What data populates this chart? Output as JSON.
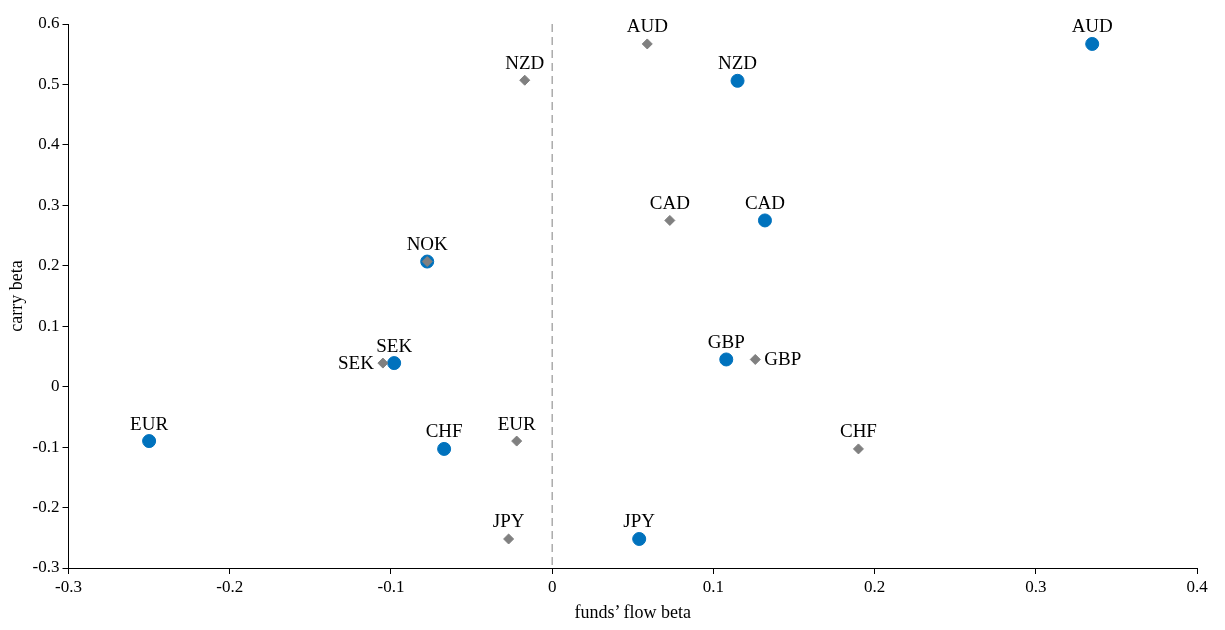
{
  "chart_data": {
    "type": "scatter",
    "xlabel": "funds’ flow beta",
    "ylabel": "carry beta",
    "xlim": [
      -0.3,
      0.4
    ],
    "xticks": [
      -0.3,
      -0.2,
      -0.1,
      0,
      0.1,
      0.2,
      0.3,
      0.4
    ],
    "ylim": [
      -0.3,
      0.6
    ],
    "yticks": [
      -0.3,
      -0.2,
      -0.1,
      0,
      0.1,
      0.2,
      0.3,
      0.4,
      0.5,
      0.6
    ],
    "grid": false,
    "legend": false,
    "series": [
      {
        "color": "#0072bd",
        "marker": "circle",
        "x": [
          0.335,
          0.115,
          0.132,
          -0.0775,
          -0.098,
          0.108,
          -0.25,
          -0.067,
          0.054
        ],
        "values": [
          0.567,
          0.506,
          0.275,
          0.207,
          0.039,
          0.045,
          -0.09,
          -0.103,
          -0.252
        ]
      },
      {
        "color": "#808080",
        "marker": "diamond",
        "x": [
          0.059,
          -0.017,
          0.073,
          -0.0775,
          -0.105,
          0.126,
          -0.022,
          0.19,
          -0.027
        ],
        "values": [
          0.567,
          0.507,
          0.275,
          0.207,
          0.039,
          0.045,
          -0.09,
          -0.103,
          -0.252
        ]
      }
    ],
    "ref_lines": [
      {
        "axis": "x",
        "value": 0,
        "color": "#808080",
        "line_style": "dashed"
      }
    ],
    "annotations": [
      {
        "text": "AUD",
        "x": 0.335,
        "y": 0.567
      },
      {
        "text": "NZD",
        "x": 0.115,
        "y": 0.506
      },
      {
        "text": "CAD",
        "x": 0.132,
        "y": 0.275
      },
      {
        "text": "NOK",
        "x": -0.0775,
        "y": 0.207
      },
      {
        "text": "SEK",
        "x": -0.098,
        "y": 0.039
      },
      {
        "text": "GBP",
        "x": 0.108,
        "y": 0.045
      },
      {
        "text": "EUR",
        "x": -0.25,
        "y": -0.09
      },
      {
        "text": "CHF",
        "x": -0.067,
        "y": -0.103
      },
      {
        "text": "JPY",
        "x": 0.054,
        "y": -0.252
      },
      {
        "text": "AUD",
        "x": 0.059,
        "y": 0.567
      },
      {
        "text": "NZD",
        "x": -0.017,
        "y": 0.507
      },
      {
        "text": "CAD",
        "x": 0.073,
        "y": 0.275
      },
      {
        "text": "SEK",
        "x": -0.105,
        "y": 0.039
      },
      {
        "text": "GBP",
        "x": 0.126,
        "y": 0.045
      },
      {
        "text": "EUR",
        "x": -0.022,
        "y": -0.09
      },
      {
        "text": "CHF",
        "x": 0.19,
        "y": -0.103
      },
      {
        "text": "JPY",
        "x": -0.027,
        "y": -0.252
      }
    ]
  }
}
